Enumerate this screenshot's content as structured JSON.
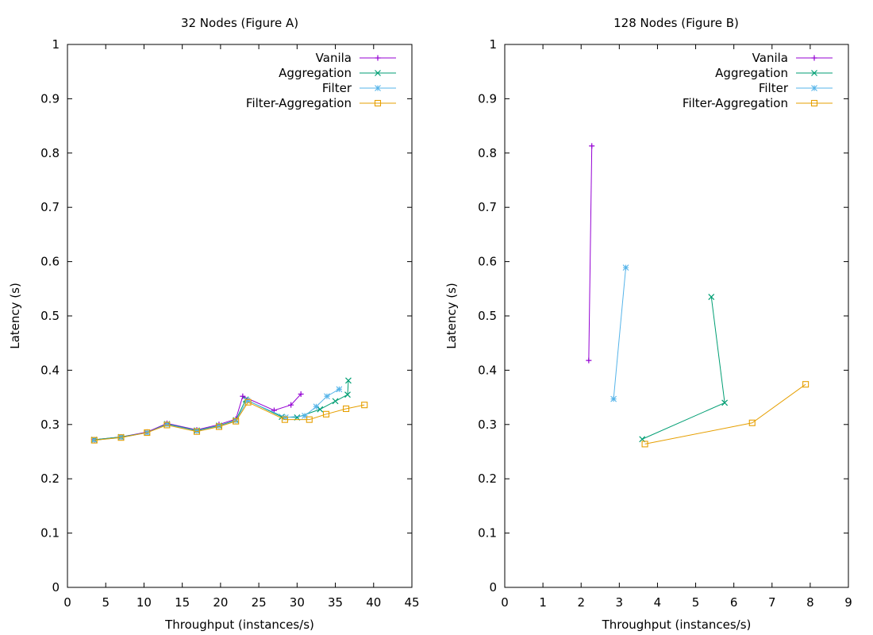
{
  "chart_data": [
    {
      "type": "line",
      "title": "32 Nodes (Figure A)",
      "xlabel": "Throughput (instances/s)",
      "ylabel": "Latency (s)",
      "xlim": [
        0,
        45
      ],
      "ylim": [
        0,
        1
      ],
      "xticks": [
        0,
        5,
        10,
        15,
        20,
        25,
        30,
        35,
        40,
        45
      ],
      "yticks": [
        0,
        0.1,
        0.2,
        0.3,
        0.4,
        0.5,
        0.6,
        0.7,
        0.8,
        0.9,
        1
      ],
      "legend_position": "top-right",
      "grid": false,
      "series": [
        {
          "name": "Vanila",
          "color": "#9400d3",
          "marker": "plus",
          "x": [
            3.5,
            7.0,
            10.4,
            13.0,
            16.9,
            19.8,
            22.0,
            22.9,
            27.0,
            29.2,
            30.5
          ],
          "y": [
            0.272,
            0.277,
            0.286,
            0.302,
            0.29,
            0.3,
            0.31,
            0.352,
            0.326,
            0.336,
            0.356
          ]
        },
        {
          "name": "Aggregation",
          "color": "#009e73",
          "marker": "x",
          "x": [
            3.5,
            7.0,
            10.4,
            13.0,
            16.9,
            19.8,
            22.0,
            23.3,
            28.0,
            30.0,
            33.0,
            35.0,
            36.6,
            36.7
          ],
          "y": [
            0.272,
            0.277,
            0.285,
            0.301,
            0.289,
            0.298,
            0.308,
            0.346,
            0.314,
            0.313,
            0.328,
            0.343,
            0.355,
            0.381
          ]
        },
        {
          "name": "Filter",
          "color": "#56b4e9",
          "marker": "star",
          "x": [
            3.5,
            7.0,
            10.4,
            13.0,
            16.9,
            19.8,
            22.0,
            23.5,
            28.5,
            31.0,
            32.5,
            33.9,
            35.5
          ],
          "y": [
            0.271,
            0.276,
            0.285,
            0.3,
            0.288,
            0.297,
            0.307,
            0.344,
            0.313,
            0.316,
            0.333,
            0.352,
            0.365
          ]
        },
        {
          "name": "Filter-Aggregation",
          "color": "#e69f00",
          "marker": "square",
          "x": [
            3.5,
            7.0,
            10.4,
            13.0,
            16.9,
            19.8,
            22.0,
            23.6,
            28.4,
            31.6,
            33.8,
            36.4,
            38.8
          ],
          "y": [
            0.271,
            0.276,
            0.285,
            0.299,
            0.287,
            0.296,
            0.306,
            0.341,
            0.309,
            0.309,
            0.319,
            0.329,
            0.336
          ]
        }
      ]
    },
    {
      "type": "line",
      "title": "128 Nodes (Figure B)",
      "xlabel": "Throughput (instances/s)",
      "ylabel": "Latency (s)",
      "xlim": [
        0,
        9
      ],
      "ylim": [
        0,
        1
      ],
      "xticks": [
        0,
        1,
        2,
        3,
        4,
        5,
        6,
        7,
        8,
        9
      ],
      "yticks": [
        0,
        0.1,
        0.2,
        0.3,
        0.4,
        0.5,
        0.6,
        0.7,
        0.8,
        0.9,
        1
      ],
      "legend_position": "top-right",
      "grid": false,
      "series": [
        {
          "name": "Vanila",
          "color": "#9400d3",
          "marker": "plus",
          "x": [
            2.2,
            2.28
          ],
          "y": [
            0.418,
            0.813
          ]
        },
        {
          "name": "Aggregation",
          "color": "#009e73",
          "marker": "x",
          "x": [
            3.6,
            5.76,
            5.41
          ],
          "y": [
            0.273,
            0.34,
            0.535
          ]
        },
        {
          "name": "Filter",
          "color": "#56b4e9",
          "marker": "star",
          "x": [
            2.85,
            3.17
          ],
          "y": [
            0.347,
            0.589
          ]
        },
        {
          "name": "Filter-Aggregation",
          "color": "#e69f00",
          "marker": "square",
          "x": [
            3.67,
            6.48,
            7.88
          ],
          "y": [
            0.264,
            0.303,
            0.374
          ]
        }
      ]
    }
  ]
}
